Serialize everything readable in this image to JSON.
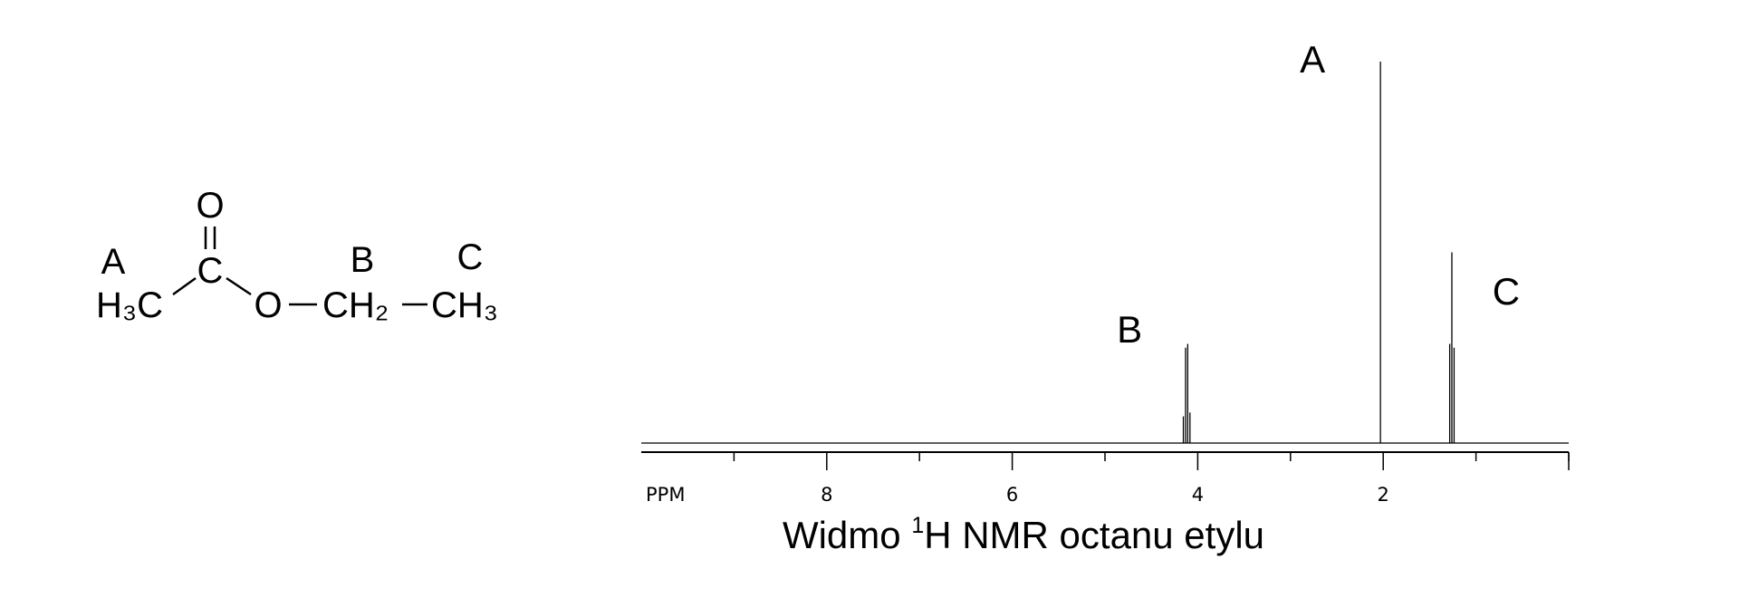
{
  "molecule": {
    "oxygen_top": "O",
    "carbonyl_carbon": "C",
    "methyl_left": "H₃C",
    "ester_oxygen": "O",
    "methylene": "CH₂",
    "methyl_right": "CH₃",
    "label_a": "A",
    "label_b": "B",
    "label_c": "C"
  },
  "chart_data": {
    "type": "line",
    "title_main": "Widmo ",
    "title_superscript": "1",
    "title_rest": "H NMR octanu etylu",
    "xlabel": "PPM",
    "x_reversed": true,
    "xlim": [
      0,
      10
    ],
    "major_ticks": [
      8,
      6,
      4,
      2
    ],
    "minor_ticks": [
      9,
      7,
      5,
      3,
      1,
      0
    ],
    "tick_labels": [
      "8",
      "6",
      "4",
      "2"
    ],
    "y_axis_shown": false,
    "grid": false,
    "peak_labels": [
      {
        "text": "A",
        "ppm": 2.05
      },
      {
        "text": "B",
        "ppm": 4.12
      },
      {
        "text": "C",
        "ppm": 1.26
      }
    ],
    "series": [
      {
        "peaks": [
          {
            "ppm": 4.155,
            "intensity": 0.07
          },
          {
            "ppm": 4.131,
            "intensity": 0.25
          },
          {
            "ppm": 4.108,
            "intensity": 0.26
          },
          {
            "ppm": 4.084,
            "intensity": 0.08
          },
          {
            "ppm": 2.03,
            "intensity": 1.0
          },
          {
            "ppm": 1.283,
            "intensity": 0.26
          },
          {
            "ppm": 1.26,
            "intensity": 0.5
          },
          {
            "ppm": 1.236,
            "intensity": 0.25
          }
        ]
      }
    ]
  }
}
